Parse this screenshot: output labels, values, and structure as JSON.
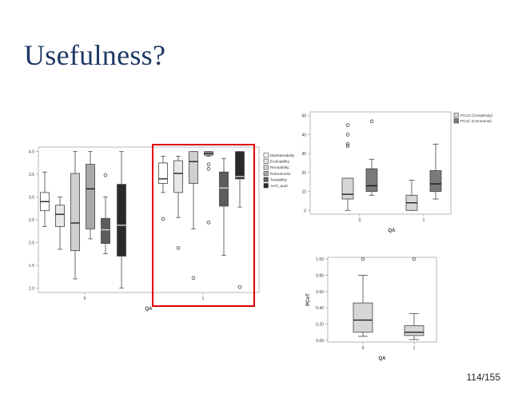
{
  "slide": {
    "title": "Usefulness?",
    "page_number": "114/155",
    "highlight_color": "#e00000"
  },
  "chart_data": [
    {
      "type": "boxplot",
      "xlabel": "QA",
      "ylabel": "",
      "ylim": [
        0.9,
        4.1
      ],
      "yticks": [
        "1.0",
        "1.5",
        "2.0",
        "2.5",
        "3.0",
        "3.5",
        "4.0"
      ],
      "categories": [
        "0",
        "1"
      ],
      "legend": "top-right",
      "highlight": "group 1",
      "series": [
        {
          "name": "Maintainability",
          "color": "#ffffff",
          "boxes": [
            {
              "group": "0",
              "min": 2.35,
              "q1": 2.7,
              "median": 2.9,
              "q3": 3.1,
              "max": 3.55,
              "outliers": []
            },
            {
              "group": "1",
              "min": 3.1,
              "q1": 3.3,
              "median": 3.4,
              "q3": 3.75,
              "max": 3.9,
              "outliers": [
                2.52
              ]
            }
          ]
        },
        {
          "name": "Evolvability",
          "color": "#e8e8e8",
          "boxes": [
            {
              "group": "0",
              "min": 1.85,
              "q1": 2.35,
              "median": 2.62,
              "q3": 2.82,
              "max": 3.0,
              "outliers": []
            },
            {
              "group": "1",
              "min": 2.55,
              "q1": 3.1,
              "median": 3.52,
              "q3": 3.8,
              "max": 3.9,
              "outliers": [
                1.88
              ]
            }
          ]
        },
        {
          "name": "Reusability",
          "color": "#cfcfcf",
          "boxes": [
            {
              "group": "0",
              "min": 1.2,
              "q1": 1.82,
              "median": 2.43,
              "q3": 3.52,
              "max": 4.0,
              "outliers": []
            },
            {
              "group": "1",
              "min": 2.3,
              "q1": 3.3,
              "median": 3.78,
              "q3": 4.0,
              "max": 4.0,
              "outliers": [
                1.22
              ]
            }
          ]
        },
        {
          "name": "Robustness",
          "color": "#a9a9a9",
          "boxes": [
            {
              "group": "0",
              "min": 2.08,
              "q1": 2.3,
              "median": 3.18,
              "q3": 3.72,
              "max": 4.0,
              "outliers": []
            },
            {
              "group": "1",
              "min": 3.9,
              "q1": 3.92,
              "median": 3.96,
              "q3": 4.0,
              "max": 4.0,
              "outliers": [
                3.72,
                3.62,
                2.44
              ]
            }
          ]
        },
        {
          "name": "Testability",
          "color": "#5c5c5c",
          "boxes": [
            {
              "group": "0",
              "min": 1.75,
              "q1": 1.98,
              "median": 2.28,
              "q3": 2.53,
              "max": 3.0,
              "outliers": [
                3.48
              ]
            },
            {
              "group": "1",
              "min": 1.72,
              "q1": 2.8,
              "median": 3.2,
              "q3": 3.55,
              "max": 3.85,
              "outliers": []
            }
          ]
        },
        {
          "name": "Arch_qual",
          "color": "#2a2a2a",
          "boxes": [
            {
              "group": "0",
              "min": 1.0,
              "q1": 1.7,
              "median": 2.38,
              "q3": 3.28,
              "max": 4.0,
              "outliers": []
            },
            {
              "group": "1",
              "min": 2.78,
              "q1": 3.4,
              "median": 3.45,
              "q3": 4.0,
              "max": 4.0,
              "outliers": [
                1.02
              ]
            }
          ]
        }
      ]
    },
    {
      "type": "boxplot",
      "xlabel": "QA",
      "ylabel": "",
      "ylim": [
        -2,
        52
      ],
      "yticks": [
        "0",
        "10",
        "20",
        "30",
        "40",
        "50"
      ],
      "categories": [
        "0",
        "1"
      ],
      "legend": "top-right",
      "series": [
        {
          "name": "PCUC (Complexity)",
          "color": "#d6d6d6",
          "boxes": [
            {
              "group": "0",
              "min": 0,
              "q1": 6,
              "median": 8.5,
              "q3": 17,
              "max": 17,
              "outliers": [
                45,
                40,
                35,
                34
              ]
            },
            {
              "group": "1",
              "min": 0,
              "q1": 0,
              "median": 4,
              "q3": 8,
              "max": 16,
              "outliers": []
            }
          ]
        },
        {
          "name": "PCoC (Comments)",
          "color": "#7a7a7a",
          "boxes": [
            {
              "group": "0",
              "min": 8,
              "q1": 10,
              "median": 13,
              "q3": 22,
              "max": 27,
              "outliers": [
                47
              ]
            },
            {
              "group": "1",
              "min": 6,
              "q1": 10,
              "median": 14,
              "q3": 21,
              "max": 35,
              "outliers": []
            }
          ]
        }
      ]
    },
    {
      "type": "boxplot",
      "xlabel": "QA",
      "ylabel": "PCoT",
      "ylim": [
        -0.02,
        1.02
      ],
      "yticks": [
        "0.00",
        "0.20",
        "0.40",
        "0.60",
        "0.80",
        "1.00"
      ],
      "categories": [
        "0",
        "1"
      ],
      "series": [
        {
          "name": "PCoT",
          "color": "#d6d6d6",
          "boxes": [
            {
              "group": "0",
              "min": 0.05,
              "q1": 0.1,
              "median": 0.25,
              "q3": 0.46,
              "max": 0.8,
              "outliers": [
                1.0
              ]
            },
            {
              "group": "1",
              "min": 0.01,
              "q1": 0.06,
              "median": 0.1,
              "q3": 0.18,
              "max": 0.33,
              "outliers": [
                1.0
              ]
            }
          ]
        }
      ]
    }
  ]
}
